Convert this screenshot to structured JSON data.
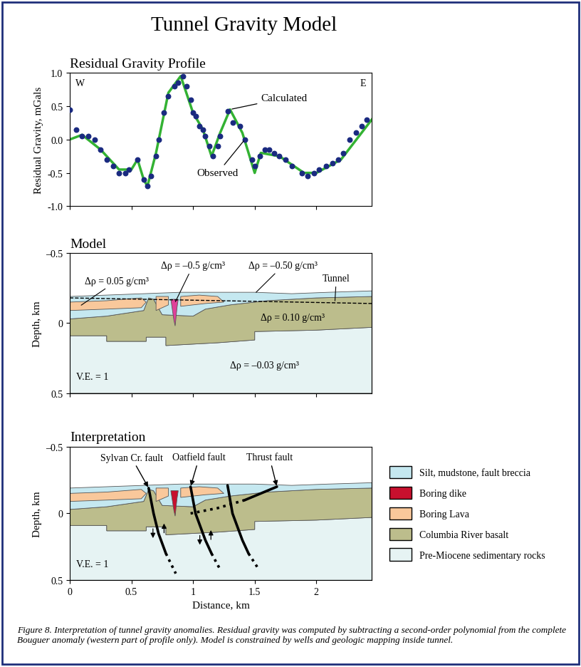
{
  "title": "Tunnel Gravity Model",
  "caption": "Figure 8. Interpretation of tunnel gravity anomalies. Residual gravity was computed by subtracting a second-order polynomial from the complete Bouguer anomaly (western part of profile only). Model is constrained by wells and geologic mapping inside tunnel.",
  "cross_section": {
    "units": [
      {
        "name": "Silt, mudstone, fault breccia",
        "polygons": [
          {
            "x": [
              0,
              0.3,
              0.6,
              0.9,
              1.2,
              1.5,
              1.8,
              2.1,
              2.45,
              2.45,
              2.0,
              1.6,
              1.3,
              1.1,
              1.0,
              0.75,
              0.68,
              0.64,
              0.6,
              0.3,
              0
            ],
            "y": [
              -0.19,
              -0.2,
              -0.21,
              -0.22,
              -0.22,
              -0.22,
              -0.21,
              -0.22,
              -0.23,
              -0.19,
              -0.18,
              -0.16,
              -0.13,
              -0.1,
              -0.05,
              -0.06,
              -0.17,
              -0.18,
              -0.09,
              -0.05,
              -0.03
            ]
          }
        ]
      },
      {
        "name": "Boring dike",
        "polygons": [
          {
            "x": [
              0.82,
              0.88,
              0.87,
              0.855,
              0.845,
              0.83
            ],
            "y": [
              -0.17,
              -0.17,
              -0.11,
              0.02,
              -0.02,
              -0.11
            ]
          }
        ]
      },
      {
        "name": "Boring Lava",
        "polygons": [
          {
            "x": [
              0,
              0.3,
              0.58,
              0.62,
              0.58,
              0.3,
              0
            ],
            "y": [
              -0.15,
              -0.16,
              -0.18,
              -0.15,
              -0.11,
              -0.1,
              -0.09
            ]
          },
          {
            "x": [
              0.7,
              0.8,
              0.8,
              0.7
            ],
            "y": [
              -0.19,
              -0.19,
              -0.13,
              -0.09
            ]
          },
          {
            "x": [
              0.9,
              1.05,
              1.2,
              1.25,
              1.1,
              0.9
            ],
            "y": [
              -0.19,
              -0.2,
              -0.19,
              -0.15,
              -0.14,
              -0.12
            ]
          }
        ]
      },
      {
        "name": "Columbia River basalt",
        "polygons": [
          {
            "x": [
              0,
              0.3,
              0.6,
              0.64,
              0.68,
              0.75,
              1.0,
              1.1,
              1.3,
              1.6,
              2.0,
              2.45,
              2.45,
              2.0,
              1.5,
              1.5,
              1.2,
              0.78,
              0.78,
              0.62,
              0.62,
              0.3,
              0.3,
              0
            ],
            "y": [
              -0.03,
              -0.05,
              -0.09,
              -0.18,
              -0.17,
              -0.06,
              -0.05,
              -0.1,
              -0.13,
              -0.16,
              -0.18,
              -0.19,
              0.03,
              0.05,
              0.06,
              0.12,
              0.14,
              0.16,
              0.1,
              0.1,
              0.13,
              0.13,
              0.09,
              0.09
            ]
          }
        ]
      },
      {
        "name": "Pre-Miocene sedimentary rocks",
        "polygons": [
          {
            "x": [
              0,
              0.3,
              0.3,
              0.62,
              0.62,
              0.78,
              0.78,
              1.2,
              1.5,
              1.5,
              2.0,
              2.45,
              2.45,
              0
            ],
            "y": [
              0.09,
              0.09,
              0.13,
              0.13,
              0.1,
              0.1,
              0.16,
              0.14,
              0.12,
              0.06,
              0.05,
              0.03,
              0.5,
              0.5
            ]
          }
        ]
      }
    ]
  },
  "chart_data": [
    {
      "type": "line",
      "title": "Residual Gravity Profile",
      "ylabel": "Residual Gravity, mGals",
      "corner_labels": [
        "W",
        "E"
      ],
      "xlim": [
        0,
        2.45
      ],
      "xticks": [
        0,
        0.5,
        1,
        1.5,
        2
      ],
      "tick_labels": "y",
      "ylim": [
        -1.0,
        1.0
      ],
      "yticks": [
        {
          "value": -1.0,
          "label": "-1.0"
        },
        {
          "value": -0.5,
          "label": "-0.5"
        },
        {
          "value": 0.0,
          "label": "0.0"
        },
        {
          "value": 0.5,
          "label": "0.5"
        },
        {
          "value": 1.0,
          "label": "1.0"
        }
      ],
      "series": [
        {
          "name": "Calculated",
          "type": "line",
          "color": "#33b233",
          "line_style": "solid",
          "x": [
            0,
            0.1,
            0.25,
            0.4,
            0.5,
            0.55,
            0.6,
            0.63,
            0.7,
            0.8,
            0.9,
            1.0,
            1.08,
            1.15,
            1.22,
            1.3,
            1.4,
            1.5,
            1.55,
            1.7,
            1.9,
            2.0,
            2.2,
            2.45
          ],
          "values": [
            0.0,
            0.07,
            -0.15,
            -0.45,
            -0.45,
            -0.3,
            -0.6,
            -0.7,
            -0.2,
            0.7,
            0.95,
            0.4,
            0.15,
            -0.25,
            0.1,
            0.45,
            0.1,
            -0.5,
            -0.2,
            -0.25,
            -0.5,
            -0.5,
            -0.3,
            0.3
          ]
        },
        {
          "name": "Observed",
          "type": "scatter",
          "color": "#1a2a80",
          "marker": "o",
          "x": [
            0,
            0.05,
            0.1,
            0.15,
            0.2,
            0.25,
            0.3,
            0.35,
            0.4,
            0.45,
            0.48,
            0.55,
            0.6,
            0.63,
            0.66,
            0.7,
            0.72,
            0.76,
            0.8,
            0.85,
            0.88,
            0.92,
            0.95,
            0.98,
            1.0,
            1.02,
            1.05,
            1.08,
            1.1,
            1.13,
            1.16,
            1.2,
            1.22,
            1.28,
            1.32,
            1.38,
            1.42,
            1.48,
            1.5,
            1.54,
            1.58,
            1.62,
            1.66,
            1.7,
            1.75,
            1.8,
            1.88,
            1.93,
            1.98,
            2.02,
            2.08,
            2.13,
            2.18,
            2.22,
            2.27,
            2.32,
            2.37,
            2.41
          ],
          "values": [
            0.45,
            0.15,
            0.05,
            0.05,
            0.0,
            -0.15,
            -0.3,
            -0.4,
            -0.5,
            -0.5,
            -0.45,
            -0.3,
            -0.6,
            -0.7,
            -0.55,
            -0.25,
            0.0,
            0.4,
            0.65,
            0.8,
            0.85,
            0.95,
            0.8,
            0.6,
            0.4,
            0.35,
            0.2,
            0.15,
            0.05,
            -0.1,
            -0.25,
            -0.1,
            0.05,
            0.42,
            0.25,
            0.2,
            0.0,
            -0.3,
            -0.4,
            -0.25,
            -0.15,
            -0.15,
            -0.2,
            -0.25,
            -0.3,
            -0.4,
            -0.5,
            -0.55,
            -0.5,
            -0.45,
            -0.4,
            -0.35,
            -0.3,
            -0.2,
            0.0,
            0.1,
            0.2,
            0.3
          ]
        }
      ]
    },
    {
      "type": "section",
      "title": "Model",
      "ylabel": "Depth, km",
      "xlim": [
        0,
        2.45
      ],
      "xticks": [
        0,
        0.5,
        1,
        1.5,
        2
      ],
      "tick_labels": "y",
      "ylim": [
        0.5,
        -0.5
      ],
      "yticks": [
        {
          "value": -0.5,
          "label": "–0.5"
        },
        0,
        0.5
      ],
      "colors": [
        "#c5e8f0",
        "#e0409a",
        "#f9c89b",
        "#bcbd8c",
        "#e6f3f3"
      ],
      "tunnel": {
        "name": "Tunnel",
        "x": [
          0,
          2.45
        ],
        "y": [
          -0.18,
          -0.14
        ]
      },
      "annotations": [
        "Δρ = 0.05 g/cm³",
        "Δρ = –0.5 g/cm³",
        "Δρ = –0.50 g/cm³",
        "Δρ = 0.10 g/cm³",
        "Δρ = –0.03 g/cm³"
      ],
      "note": "V.E. = 1"
    },
    {
      "type": "section",
      "title": "Interpretation",
      "ylabel": "Depth, km",
      "xlabel": "Distance, km",
      "xlim": [
        0,
        2.45
      ],
      "xticks": [
        0,
        0.5,
        1,
        1.5,
        2
      ],
      "ylim": [
        0.5,
        -0.5
      ],
      "yticks": [
        {
          "value": -0.5,
          "label": "–0.5"
        },
        0,
        0.5
      ],
      "colors": [
        "#c5e8f0",
        "#c8102e",
        "#f9c89b",
        "#bcbd8c",
        "#e6f3f3"
      ],
      "legend": "right",
      "faults": [
        {
          "name": "Sylvan Cr. fault",
          "x": [
            0.64,
            0.68,
            0.72,
            0.78
          ],
          "y": [
            -0.19,
            0.0,
            0.15,
            0.3
          ],
          "extension_x": [
            0.78,
            0.86
          ],
          "extension_y": [
            0.3,
            0.45
          ]
        },
        {
          "name": "Oatfield fault",
          "x": [
            0.98,
            1.02,
            1.1,
            1.15
          ],
          "y": [
            -0.2,
            0.0,
            0.2,
            0.3
          ],
          "extension_x": [
            1.15,
            1.22
          ],
          "extension_y": [
            0.3,
            0.42
          ]
        },
        {
          "x": [
            1.28,
            1.32,
            1.4,
            1.45
          ],
          "y": [
            -0.21,
            0.0,
            0.2,
            0.3
          ],
          "extension_x": [
            1.45,
            1.52
          ],
          "extension_y": [
            0.3,
            0.4
          ]
        },
        {
          "name": "Thrust fault",
          "x": [
            1.68,
            1.55,
            1.42
          ],
          "y": [
            -0.2,
            -0.15,
            -0.1
          ],
          "extension_x": [
            1.42,
            1.2,
            0.98
          ],
          "extension_y": [
            -0.1,
            -0.04,
            0.0
          ]
        }
      ],
      "note": "V.E. = 1"
    }
  ]
}
